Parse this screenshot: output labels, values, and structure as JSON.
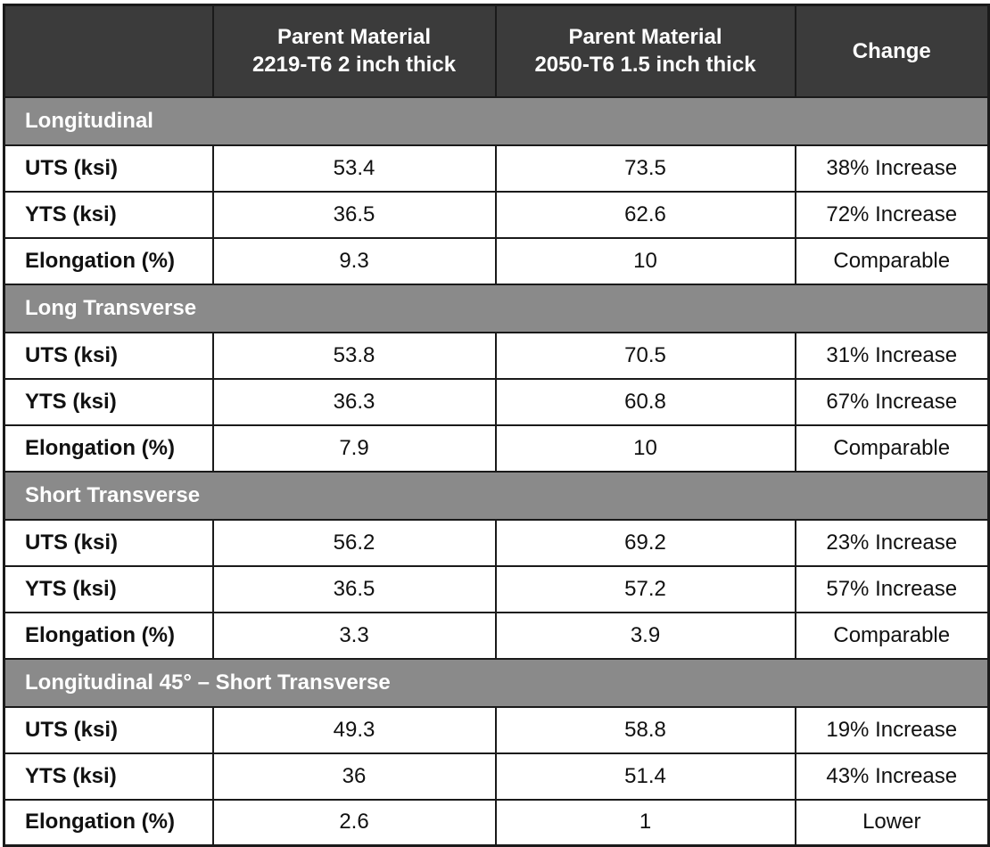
{
  "header": {
    "corner": "",
    "col1": [
      "Parent Material",
      "2219-T6 2 inch thick"
    ],
    "col2": [
      "Parent Material",
      "2050-T6 1.5 inch thick"
    ],
    "col3": "Change"
  },
  "sections": [
    {
      "title": "Longitudinal",
      "rows": [
        {
          "property": "UTS (ksi)",
          "v2219": "53.4",
          "v2050": "73.5",
          "change": "38% Increase"
        },
        {
          "property": "YTS (ksi)",
          "v2219": "36.5",
          "v2050": "62.6",
          "change": "72% Increase"
        },
        {
          "property": "Elongation (%)",
          "v2219": "9.3",
          "v2050": "10",
          "change": "Comparable"
        }
      ]
    },
    {
      "title": "Long Transverse",
      "rows": [
        {
          "property": "UTS (ksi)",
          "v2219": "53.8",
          "v2050": "70.5",
          "change": "31% Increase"
        },
        {
          "property": "YTS (ksi)",
          "v2219": "36.3",
          "v2050": "60.8",
          "change": "67% Increase"
        },
        {
          "property": "Elongation (%)",
          "v2219": "7.9",
          "v2050": "10",
          "change": "Comparable"
        }
      ]
    },
    {
      "title": "Short Transverse",
      "rows": [
        {
          "property": "UTS (ksi)",
          "v2219": "56.2",
          "v2050": "69.2",
          "change": "23% Increase"
        },
        {
          "property": "YTS (ksi)",
          "v2219": "36.5",
          "v2050": "57.2",
          "change": "57% Increase"
        },
        {
          "property": "Elongation (%)",
          "v2219": "3.3",
          "v2050": "3.9",
          "change": "Comparable"
        }
      ]
    },
    {
      "title": "Longitudinal 45° – Short Transverse",
      "rows": [
        {
          "property": "UTS (ksi)",
          "v2219": "49.3",
          "v2050": "58.8",
          "change": "19% Increase"
        },
        {
          "property": "YTS (ksi)",
          "v2219": "36",
          "v2050": "51.4",
          "change": "43% Increase"
        },
        {
          "property": "Elongation (%)",
          "v2219": "2.6",
          "v2050": "1",
          "change": "Lower"
        }
      ]
    }
  ]
}
